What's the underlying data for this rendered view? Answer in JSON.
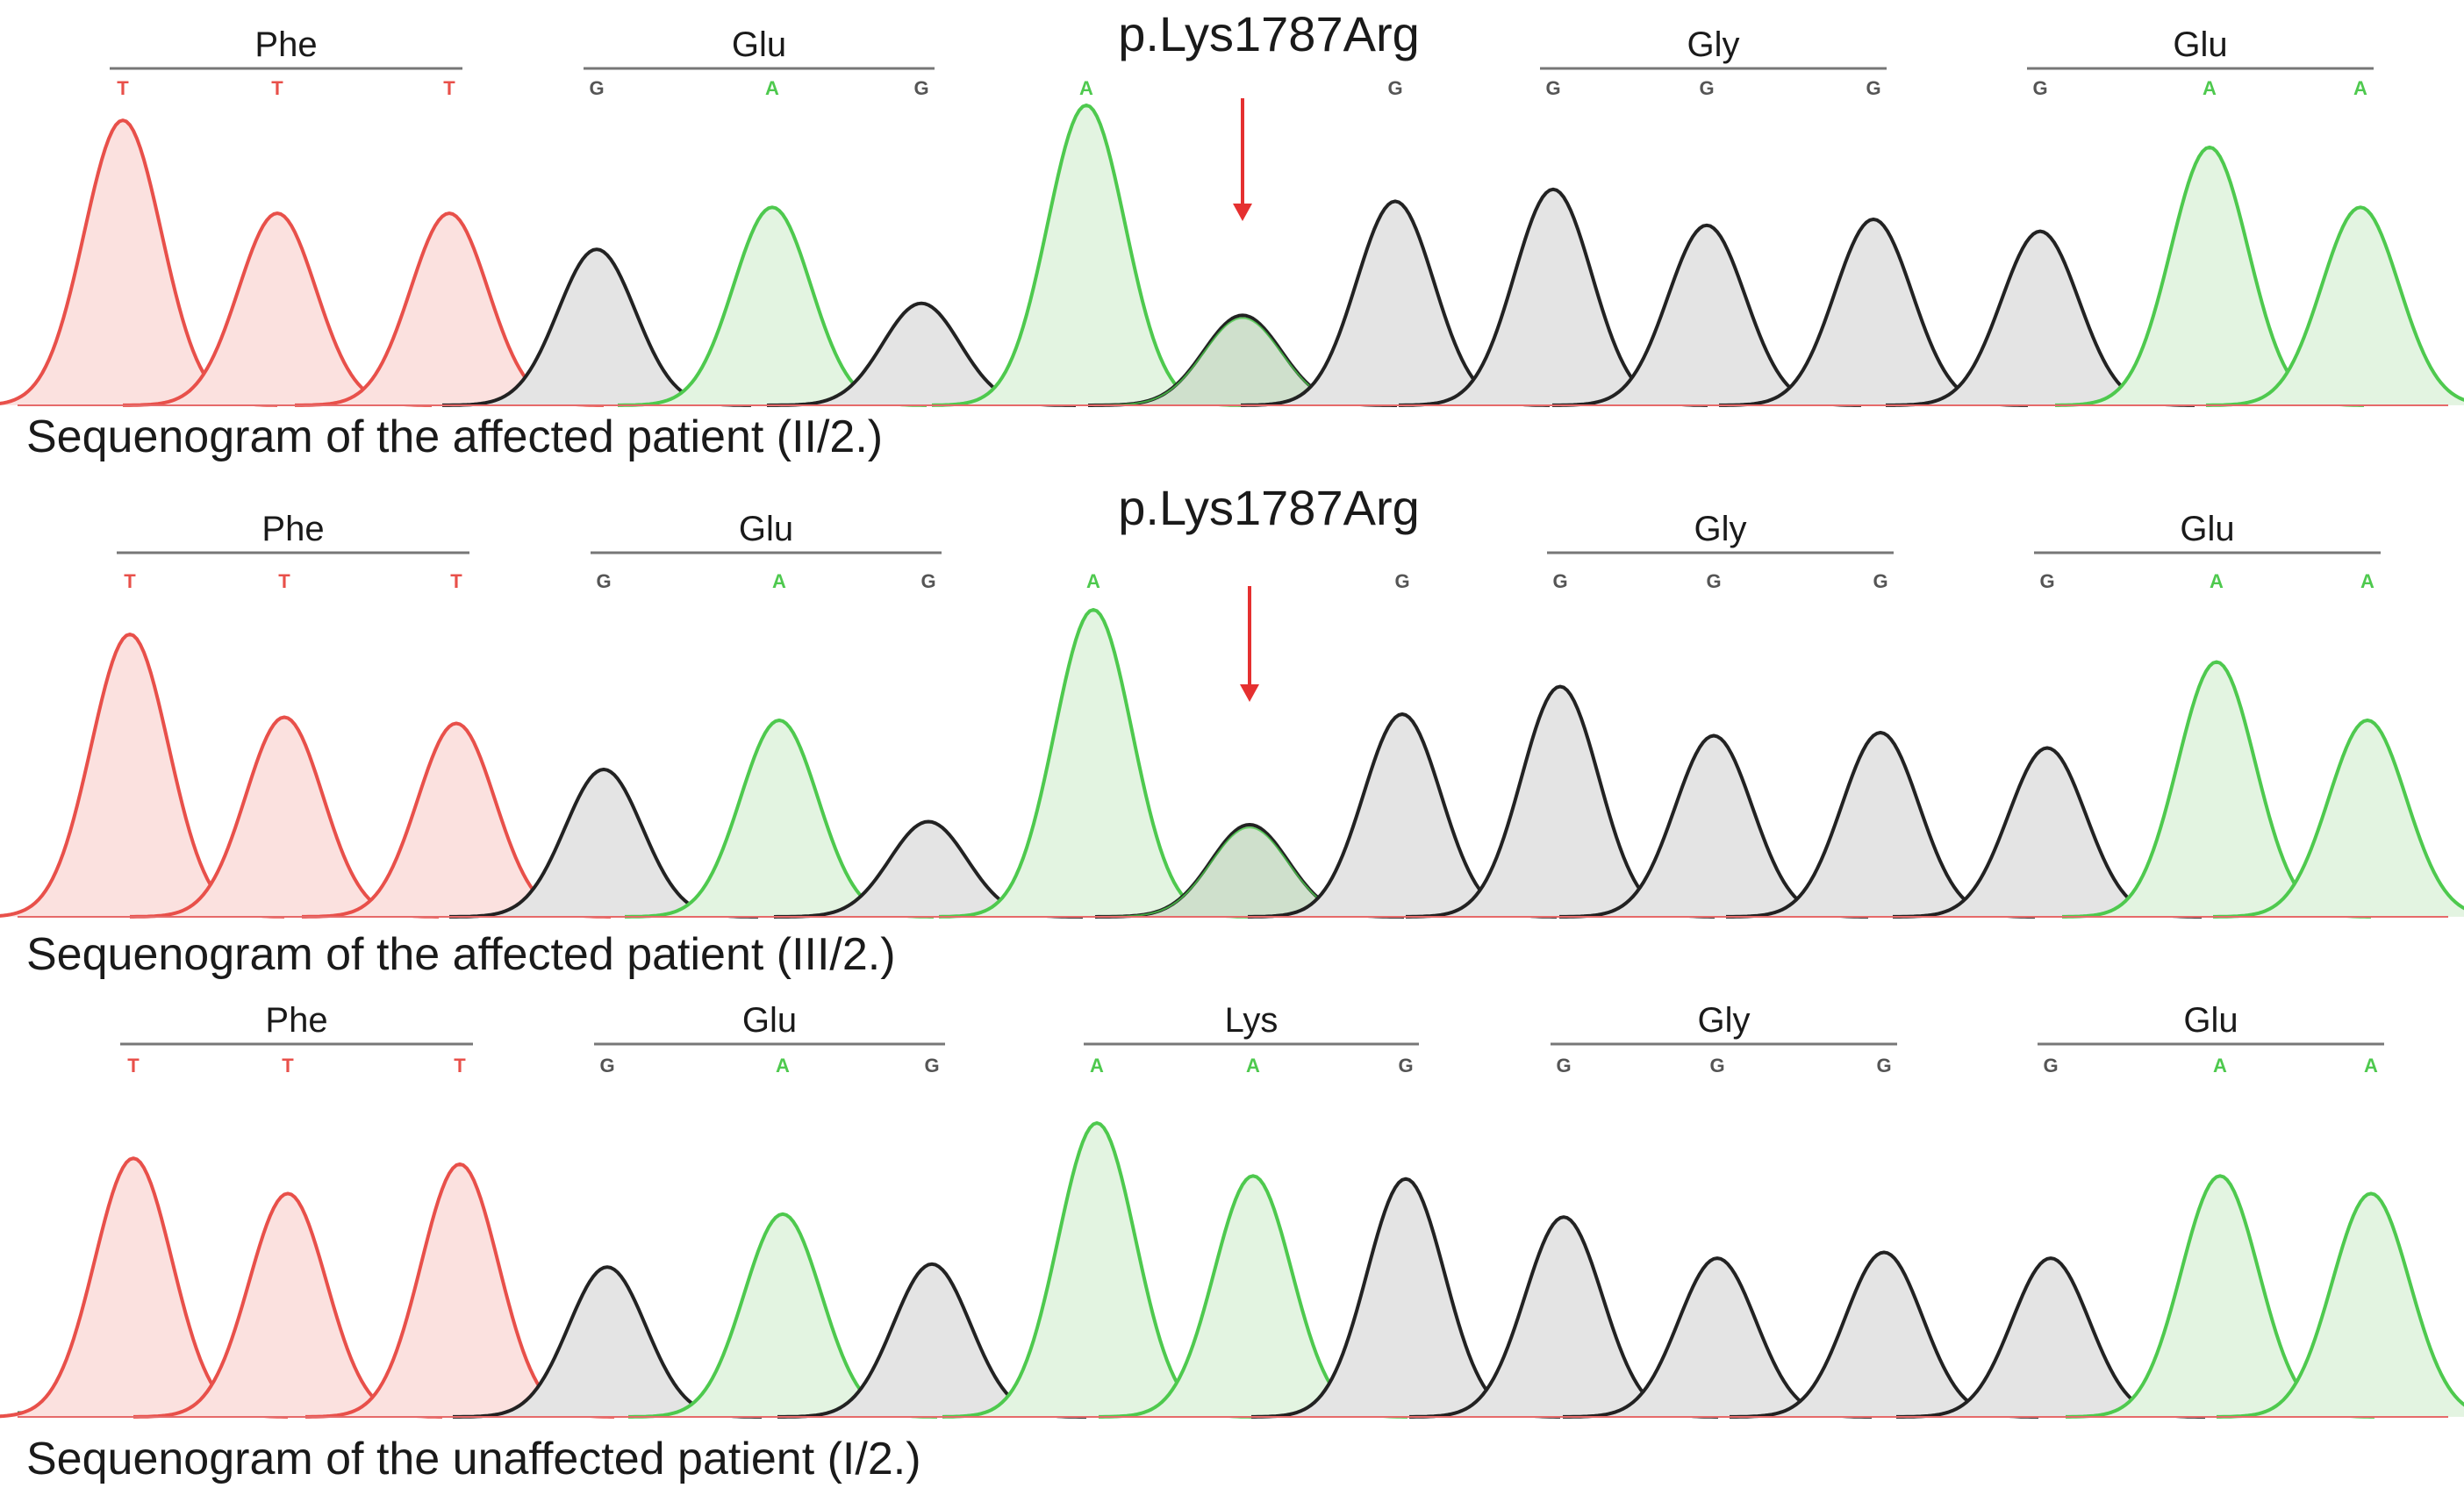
{
  "chart_data": {
    "type": "line",
    "description_kind": "chromatogram",
    "colors": {
      "T": "#e8504a",
      "A": "#4ec94e",
      "G": "#222222",
      "C": "#3b5bd6",
      "fill_T": "#fbe1df",
      "fill_A": "#e3f4e1",
      "fill_G": "#e4e4e4",
      "fill_mut": "#cfe0cc",
      "arrow": "#e53030",
      "codon_line": "#777777"
    },
    "panels": [
      {
        "caption": "Sequenogram of the affected patient (II/2.)",
        "variant_label": "p.Lys1787Arg",
        "codons": [
          {
            "aa": "Phe",
            "bases": [
              "T",
              "T",
              "T"
            ]
          },
          {
            "aa": "Glu",
            "bases": [
              "G",
              "A",
              "G"
            ]
          },
          {
            "aa": "",
            "bases": [
              "A",
              "",
              "G"
            ]
          },
          {
            "aa": "Gly",
            "bases": [
              "G",
              "G",
              "G"
            ]
          },
          {
            "aa": "Glu",
            "bases": [
              "G",
              "A",
              "A"
            ]
          }
        ],
        "peaks": [
          {
            "base": "T",
            "height": 0.95
          },
          {
            "base": "T",
            "height": 0.64
          },
          {
            "base": "T",
            "height": 0.64
          },
          {
            "base": "G",
            "height": 0.52
          },
          {
            "base": "A",
            "height": 0.66
          },
          {
            "base": "G",
            "height": 0.34
          },
          {
            "base": "A",
            "height": 1.0
          },
          {
            "base": "G",
            "height": 0.3,
            "mutant": true
          },
          {
            "base": "G",
            "height": 0.68
          },
          {
            "base": "G",
            "height": 0.72
          },
          {
            "base": "G",
            "height": 0.6
          },
          {
            "base": "G",
            "height": 0.62
          },
          {
            "base": "G",
            "height": 0.58
          },
          {
            "base": "A",
            "height": 0.86
          },
          {
            "base": "A",
            "height": 0.66
          }
        ]
      },
      {
        "caption": "Sequenogram of the affected patient (III/2.)",
        "variant_label": "p.Lys1787Arg",
        "codons": [
          {
            "aa": "Phe",
            "bases": [
              "T",
              "T",
              "T"
            ]
          },
          {
            "aa": "Glu",
            "bases": [
              "G",
              "A",
              "G"
            ]
          },
          {
            "aa": "",
            "bases": [
              "A",
              "",
              "G"
            ]
          },
          {
            "aa": "Gly",
            "bases": [
              "G",
              "G",
              "G"
            ]
          },
          {
            "aa": "Glu",
            "bases": [
              "G",
              "A",
              "A"
            ]
          }
        ],
        "peaks": [
          {
            "base": "T",
            "height": 0.92
          },
          {
            "base": "T",
            "height": 0.65
          },
          {
            "base": "T",
            "height": 0.63
          },
          {
            "base": "G",
            "height": 0.48
          },
          {
            "base": "A",
            "height": 0.64
          },
          {
            "base": "G",
            "height": 0.31
          },
          {
            "base": "A",
            "height": 1.0
          },
          {
            "base": "G",
            "height": 0.3,
            "mutant": true
          },
          {
            "base": "G",
            "height": 0.66
          },
          {
            "base": "G",
            "height": 0.75
          },
          {
            "base": "G",
            "height": 0.59
          },
          {
            "base": "G",
            "height": 0.6
          },
          {
            "base": "G",
            "height": 0.55
          },
          {
            "base": "A",
            "height": 0.83
          },
          {
            "base": "A",
            "height": 0.64
          }
        ]
      },
      {
        "caption": "Sequenogram of the unaffected patient (I/2.)",
        "variant_label": "",
        "codons": [
          {
            "aa": "Phe",
            "bases": [
              "T",
              "T",
              "T"
            ]
          },
          {
            "aa": "Glu",
            "bases": [
              "G",
              "A",
              "G"
            ]
          },
          {
            "aa": "Lys",
            "bases": [
              "A",
              "A",
              "G"
            ]
          },
          {
            "aa": "Gly",
            "bases": [
              "G",
              "G",
              "G"
            ]
          },
          {
            "aa": "Glu",
            "bases": [
              "G",
              "A",
              "A"
            ]
          }
        ],
        "peaks": [
          {
            "base": "T",
            "height": 0.88
          },
          {
            "base": "T",
            "height": 0.76
          },
          {
            "base": "T",
            "height": 0.86
          },
          {
            "base": "G",
            "height": 0.51
          },
          {
            "base": "A",
            "height": 0.69
          },
          {
            "base": "G",
            "height": 0.52
          },
          {
            "base": "A",
            "height": 1.0
          },
          {
            "base": "A",
            "height": 0.82
          },
          {
            "base": "G",
            "height": 0.81
          },
          {
            "base": "G",
            "height": 0.68
          },
          {
            "base": "G",
            "height": 0.54
          },
          {
            "base": "G",
            "height": 0.56
          },
          {
            "base": "G",
            "height": 0.54
          },
          {
            "base": "A",
            "height": 0.82
          },
          {
            "base": "A",
            "height": 0.76
          }
        ]
      }
    ]
  }
}
